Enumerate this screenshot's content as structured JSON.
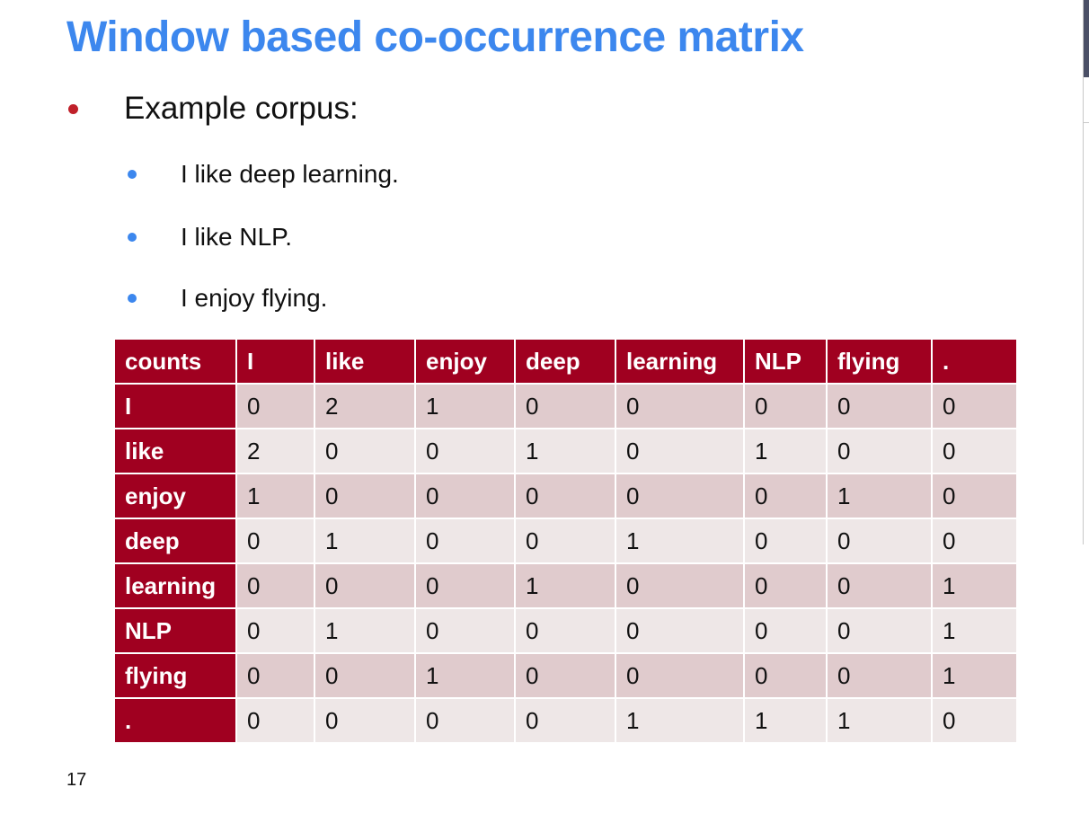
{
  "slide": {
    "title": "Window based co-occurrence matrix",
    "bullet": "Example corpus:",
    "sub_bullets": [
      "I like deep learning.",
      "I like NLP.",
      "I enjoy flying."
    ],
    "page_number": "17"
  },
  "colors": {
    "title": "#3c87ee",
    "header_fill": "#a00020",
    "row_band_dark": "#e0cbcd",
    "row_band_light": "#eee7e7",
    "bullet_red": "#c0202a",
    "bullet_blue": "#3c87ee"
  },
  "table": {
    "corner": "counts",
    "columns": [
      "I",
      "like",
      "enjoy",
      "deep",
      "learning",
      "NLP",
      "flying",
      "."
    ],
    "rows": [
      {
        "label": "I",
        "values": [
          "0",
          "2",
          "1",
          "0",
          "0",
          "0",
          "0",
          "0"
        ]
      },
      {
        "label": "like",
        "values": [
          "2",
          "0",
          "0",
          "1",
          "0",
          "1",
          "0",
          "0"
        ]
      },
      {
        "label": "enjoy",
        "values": [
          "1",
          "0",
          "0",
          "0",
          "0",
          "0",
          "1",
          "0"
        ]
      },
      {
        "label": "deep",
        "values": [
          "0",
          "1",
          "0",
          "0",
          "1",
          "0",
          "0",
          "0"
        ]
      },
      {
        "label": "learning",
        "values": [
          "0",
          "0",
          "0",
          "1",
          "0",
          "0",
          "0",
          "1"
        ]
      },
      {
        "label": "NLP",
        "values": [
          "0",
          "1",
          "0",
          "0",
          "0",
          "0",
          "0",
          "1"
        ]
      },
      {
        "label": "flying",
        "values": [
          "0",
          "0",
          "1",
          "0",
          "0",
          "0",
          "0",
          "1"
        ]
      },
      {
        "label": ".",
        "values": [
          "0",
          "0",
          "0",
          "0",
          "1",
          "1",
          "1",
          "0"
        ]
      }
    ]
  }
}
